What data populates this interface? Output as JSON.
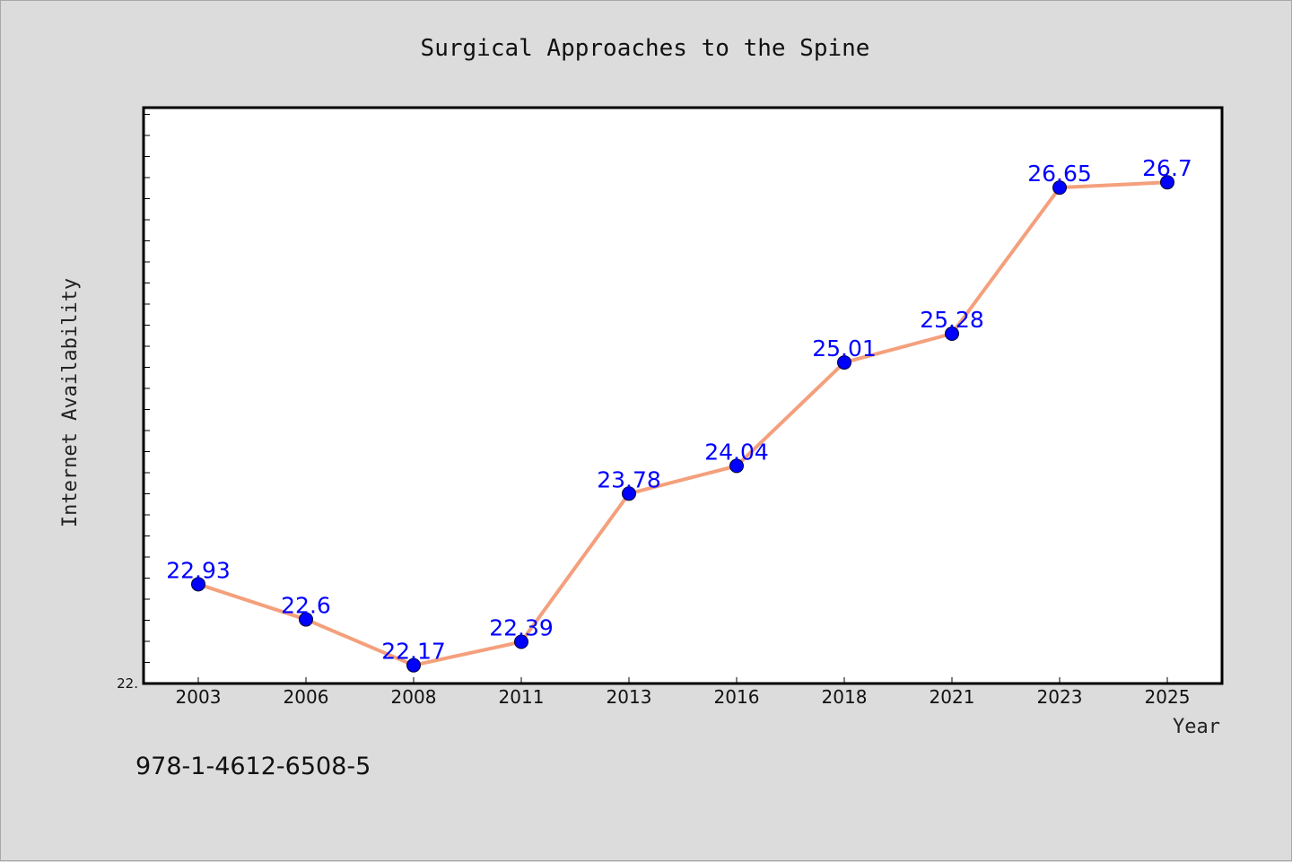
{
  "chart_data": {
    "type": "line",
    "title": "Surgical Approaches to the Spine",
    "xlabel": "Year",
    "ylabel": "Internet Availability",
    "categories": [
      "2003",
      "2006",
      "2008",
      "2011",
      "2013",
      "2016",
      "2018",
      "2021",
      "2023",
      "2025"
    ],
    "series": [
      {
        "values": [
          22.93,
          22.6,
          22.17,
          22.39,
          23.78,
          24.04,
          25.01,
          25.28,
          26.65,
          26.7
        ],
        "labels": [
          "22.93",
          "22.6",
          "22.17",
          "22.39",
          "23.78",
          "24.04",
          "25.01",
          "25.28",
          "26.65",
          "26.7"
        ]
      }
    ],
    "ylim": [
      21.999,
      27.4
    ],
    "ytick_labels": [
      "22."
    ],
    "grid": false,
    "line_color": "#f4a07c",
    "marker_color": "#0000ff",
    "label_color": "#0000ff"
  },
  "footer_text": "978-1-4612-6508-5"
}
